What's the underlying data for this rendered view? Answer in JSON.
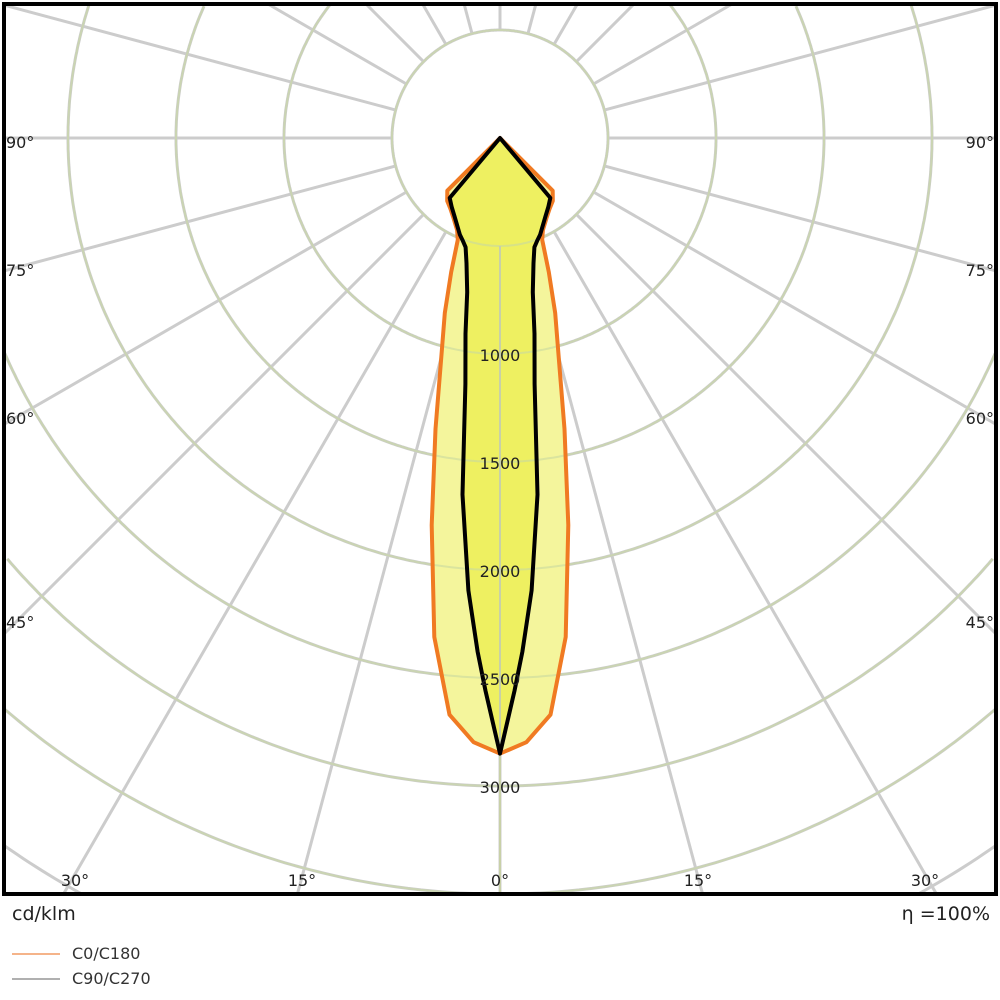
{
  "chart_data": {
    "type": "polar",
    "unit_label": "cd/klm",
    "efficiency_label": "η =100%",
    "radial_ticks": [
      1000,
      1500,
      2000,
      2500,
      3000
    ],
    "radial_tick_labels": [
      "1000",
      "1500",
      "2000",
      "2500",
      "3000"
    ],
    "radial_grid_step": 500,
    "angle_grid_step_deg": 15,
    "angle_labels": {
      "side": [
        "90°",
        "75°",
        "60°",
        "45°"
      ],
      "bottom": [
        "30°",
        "15°",
        "0°",
        "15°",
        "30°"
      ]
    },
    "grid": true,
    "colors": {
      "grid": "#cccccc",
      "c0_line": "#f07a22",
      "c0_fill": "#f4f59c",
      "c90_line": "#000000",
      "c90_fill": "#eef061",
      "frame": "#000000"
    },
    "series": [
      {
        "name": "C0/C180",
        "legend_color": "#f5b48a",
        "angles_deg": [
          0,
          2.5,
          5,
          7.5,
          10,
          12.5,
          15,
          17.5,
          20,
          22.5,
          25,
          30,
          35,
          40,
          45,
          46
        ],
        "values": [
          2850,
          2800,
          2680,
          2330,
          1820,
          1380,
          1050,
          850,
          660,
          510,
          470,
          430,
          400,
          380,
          345,
          0
        ]
      },
      {
        "name": "C90/C270",
        "legend_color": "#b0b0b0",
        "angles_deg": [
          0,
          1.5,
          2.5,
          4,
          6,
          8,
          10,
          12,
          15,
          17.5,
          20,
          22.5,
          30,
          35,
          40,
          41
        ],
        "values": [
          2850,
          2560,
          2380,
          2100,
          1660,
          1150,
          920,
          730,
          600,
          530,
          505,
          485,
          420,
          390,
          362,
          0
        ]
      }
    ]
  }
}
